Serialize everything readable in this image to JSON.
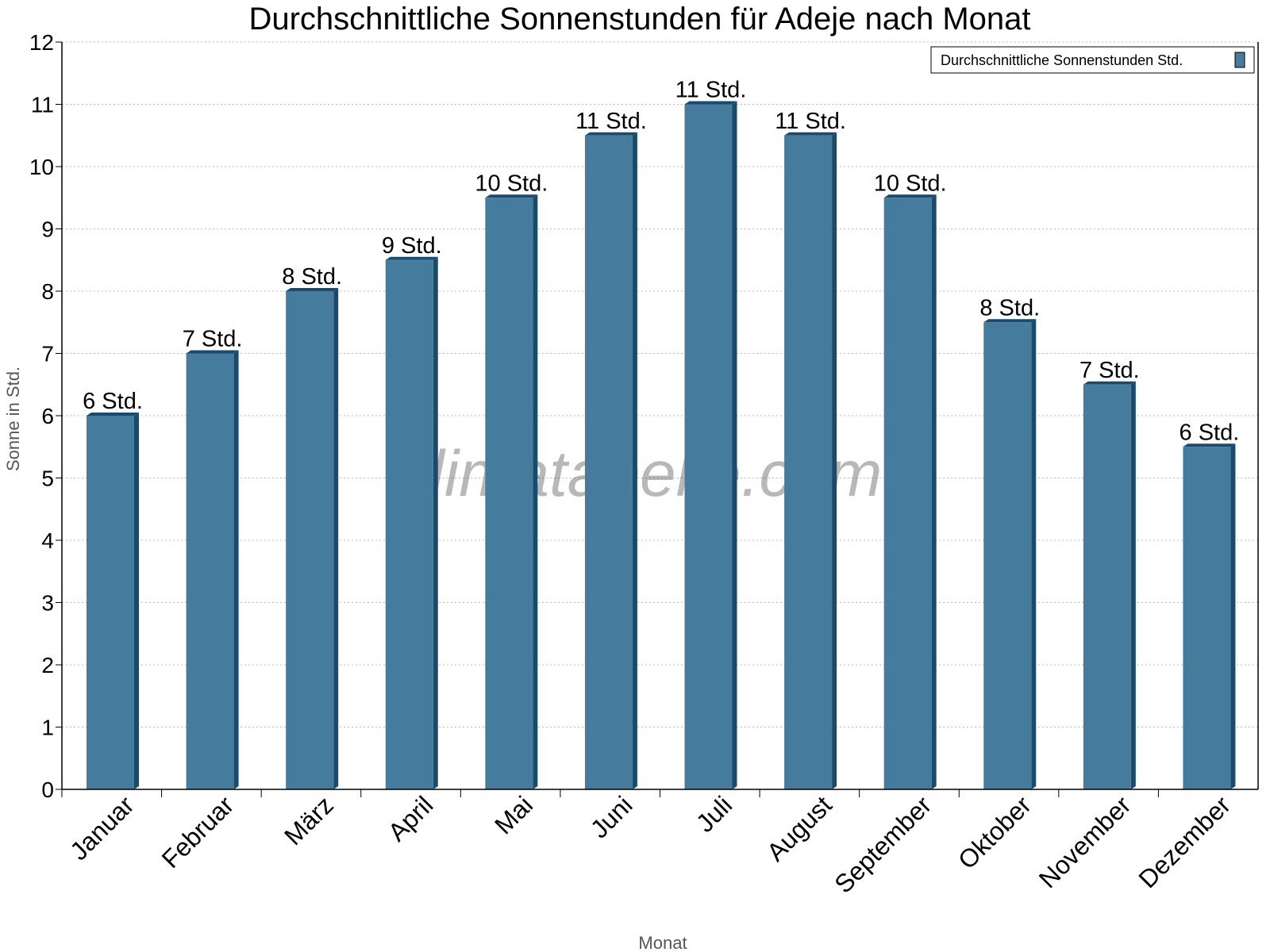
{
  "chart_data": {
    "type": "bar",
    "title": "Durchschnittliche Sonnenstunden für Adeje nach Monat",
    "xlabel": "Monat",
    "ylabel": "Sonne in Std.",
    "ylim": [
      0,
      12
    ],
    "yticks": [
      "0",
      "1",
      "2",
      "3",
      "4",
      "5",
      "6",
      "7",
      "8",
      "9",
      "10",
      "11",
      "12"
    ],
    "grid": true,
    "legend_position": "top-right",
    "categories": [
      "Januar",
      "Februar",
      "März",
      "April",
      "Mai",
      "Juni",
      "Juli",
      "August",
      "September",
      "Oktober",
      "November",
      "Dezember"
    ],
    "series": [
      {
        "name": "Durchschnittliche Sonnenstunden Std.",
        "color": "#457b9d",
        "side_color": "#1b4a6b",
        "values": [
          6.0,
          7.0,
          8.0,
          8.5,
          9.5,
          10.5,
          11.0,
          10.5,
          9.5,
          7.5,
          6.5,
          5.5
        ],
        "data_labels": [
          "6 Std.",
          "7 Std.",
          "8 Std.",
          "9 Std.",
          "10 Std.",
          "11 Std.",
          "11 Std.",
          "11 Std.",
          "10 Std.",
          "8 Std.",
          "7 Std.",
          "6 Std."
        ]
      }
    ],
    "watermark": "klimatabelle.com"
  }
}
